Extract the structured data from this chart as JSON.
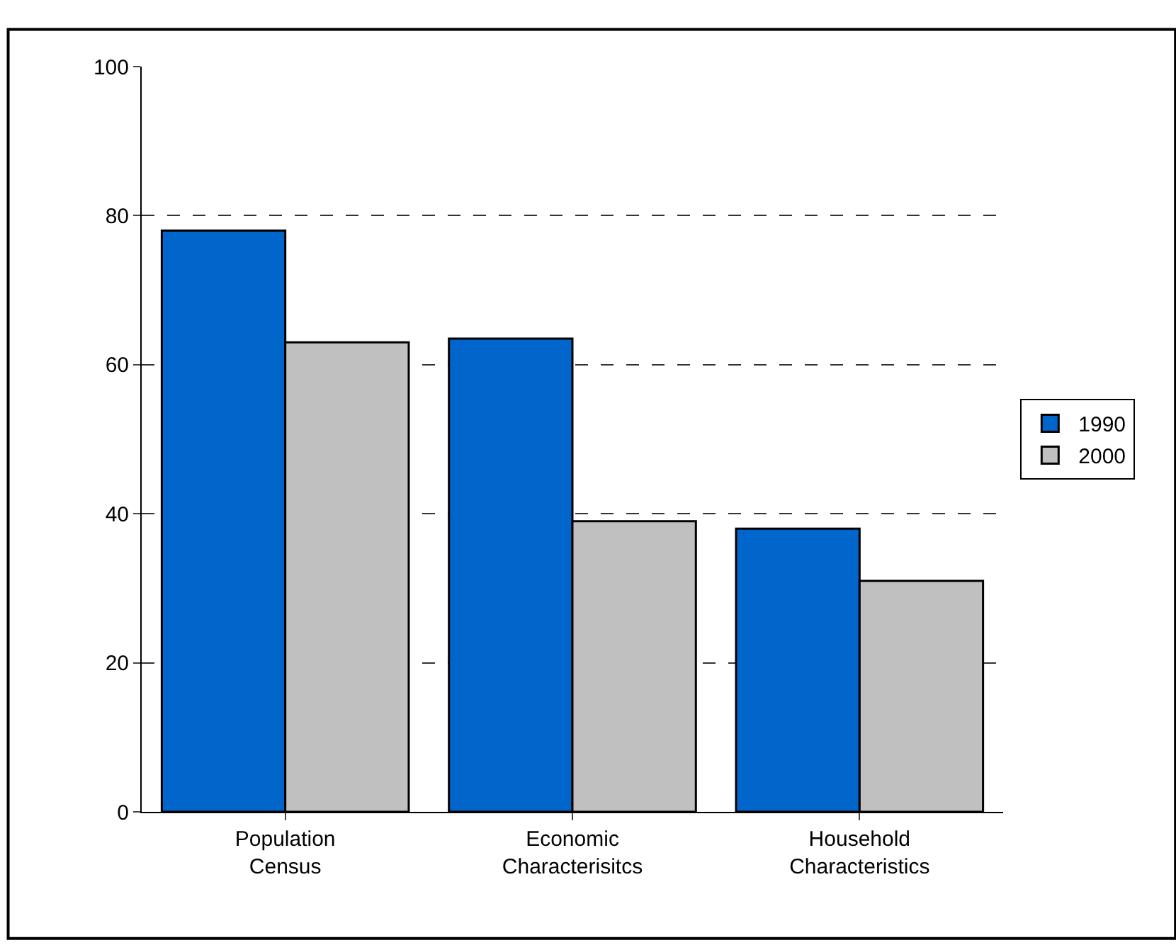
{
  "chart_data": {
    "type": "bar",
    "categories": [
      "Population\nCensus",
      "Economic\nCharacterisitcs",
      "Household\nCharacteristics"
    ],
    "series": [
      {
        "name": "1990",
        "color": "#0066cc",
        "values": [
          78,
          63.5,
          38
        ]
      },
      {
        "name": "2000",
        "color": "#c0c0c0",
        "values": [
          63,
          39,
          31
        ]
      }
    ],
    "ylim": [
      0,
      100
    ],
    "yticks": [
      0,
      20,
      40,
      60,
      80,
      100
    ],
    "grid": "y",
    "legend": "right"
  }
}
